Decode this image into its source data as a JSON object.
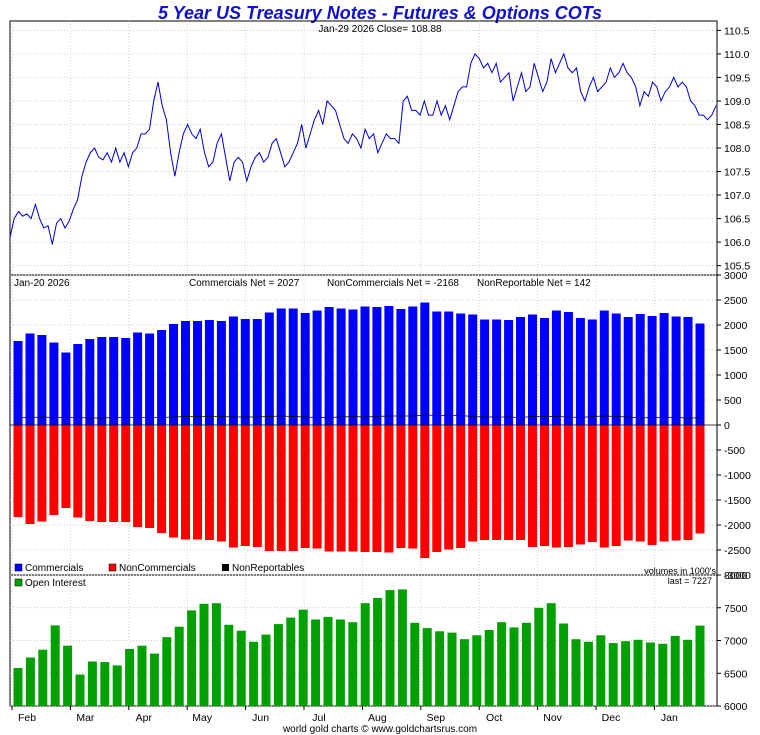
{
  "title": "5 Year US Treasury Notes - Futures & Options COTs",
  "footer": "world gold charts © www.goldchartsrus.com",
  "colors": {
    "title": "#1010d0",
    "price": "#0000cc",
    "commercials": "#0000ff",
    "noncommercials": "#ff0000",
    "nonreportables": "#000000",
    "open_interest": "#00a000"
  },
  "price_panel": {
    "header": "Jan-29  2026   Close= 108.88",
    "y_ticks": [
      "110.5",
      "110.0",
      "109.5",
      "109.0",
      "108.5",
      "108.0",
      "107.5",
      "107.0",
      "106.5",
      "106.0",
      "105.5"
    ]
  },
  "cot_panel": {
    "date_label": "Jan-20  2026",
    "net_labels": [
      "Commercials Net = 2027",
      "NonCommercials Net = -2168",
      "NonReportable Net = 142"
    ],
    "y_ticks": [
      "3000",
      "2500",
      "2000",
      "1500",
      "1000",
      "500",
      "0",
      "-500",
      "-1000",
      "-1500",
      "-2000",
      "-2500",
      "-3000"
    ],
    "legend": [
      "Commercials",
      "NonCommercials",
      "NonReportables"
    ],
    "volume_note": "volumes in 1000's"
  },
  "oi_panel": {
    "legend": "Open Interest",
    "last_label": "last = 7227",
    "y_ticks": [
      "8000",
      "7500",
      "7000",
      "6500",
      "6000"
    ]
  },
  "x_labels": [
    "Feb",
    "Mar",
    "Apr",
    "May",
    "Jun",
    "Jul",
    "Aug",
    "Sep",
    "Oct",
    "Nov",
    "Dec",
    "Jan"
  ],
  "chart_data": {
    "type": "line",
    "title": "5 Year US Treasury Notes - Futures & Options COTs",
    "xlabel": "",
    "ylabel": "",
    "price": {
      "ylim": [
        105.3,
        110.7
      ],
      "values": [
        106.1,
        106.5,
        106.65,
        106.55,
        106.6,
        106.5,
        106.8,
        106.5,
        106.3,
        106.35,
        105.95,
        106.4,
        106.5,
        106.3,
        106.45,
        106.7,
        106.9,
        107.4,
        107.7,
        107.9,
        108.0,
        107.8,
        107.75,
        107.9,
        107.7,
        108.0,
        107.7,
        107.9,
        107.6,
        107.9,
        108.0,
        108.3,
        108.3,
        108.4,
        109.0,
        109.4,
        108.9,
        108.6,
        107.9,
        107.4,
        107.9,
        108.3,
        108.5,
        108.3,
        108.2,
        108.4,
        107.9,
        107.6,
        107.7,
        108.1,
        108.3,
        107.8,
        107.3,
        107.7,
        107.8,
        107.7,
        107.3,
        107.6,
        107.8,
        107.9,
        107.7,
        107.8,
        108.1,
        108.2,
        107.9,
        107.6,
        107.7,
        107.9,
        108.1,
        108.5,
        108.0,
        108.3,
        108.6,
        108.8,
        108.5,
        109.0,
        108.9,
        108.8,
        108.5,
        108.2,
        108.1,
        108.3,
        108.2,
        108.0,
        108.4,
        108.2,
        108.3,
        107.9,
        108.1,
        108.3,
        108.2,
        108.2,
        108.1,
        109.0,
        109.1,
        108.8,
        108.8,
        108.7,
        109.0,
        108.7,
        108.7,
        109.0,
        108.7,
        108.9,
        108.6,
        108.9,
        109.2,
        109.3,
        109.3,
        109.8,
        110.0,
        109.9,
        109.7,
        109.8,
        109.6,
        109.8,
        109.4,
        109.5,
        109.6,
        109.0,
        109.3,
        109.6,
        109.2,
        109.3,
        109.8,
        109.5,
        109.2,
        109.4,
        109.9,
        109.6,
        109.8,
        110.0,
        109.7,
        109.6,
        109.7,
        109.2,
        109.0,
        109.3,
        109.5,
        109.2,
        109.3,
        109.4,
        109.7,
        109.5,
        109.6,
        109.8,
        109.6,
        109.5,
        109.3,
        108.9,
        109.2,
        109.1,
        109.4,
        109.3,
        109.0,
        109.2,
        109.3,
        109.5,
        109.3,
        109.4,
        109.3,
        109.0,
        108.9,
        108.7,
        108.7,
        108.6,
        108.7,
        108.9
      ]
    },
    "cot": {
      "ylim": [
        -3000,
        3000
      ],
      "commercials": [
        1680,
        1830,
        1800,
        1650,
        1450,
        1620,
        1720,
        1760,
        1760,
        1740,
        1850,
        1830,
        1900,
        2020,
        2080,
        2080,
        2100,
        2080,
        2170,
        2120,
        2120,
        2250,
        2330,
        2330,
        2240,
        2290,
        2360,
        2330,
        2310,
        2370,
        2360,
        2380,
        2320,
        2370,
        2450,
        2270,
        2270,
        2230,
        2210,
        2110,
        2110,
        2100,
        2160,
        2210,
        2140,
        2290,
        2260,
        2140,
        2110,
        2290,
        2230,
        2160,
        2220,
        2180,
        2240,
        2170,
        2160,
        2030
      ],
      "noncommercials": [
        -1840,
        -1980,
        -1930,
        -1800,
        -1660,
        -1850,
        -1920,
        -1940,
        -1940,
        -1940,
        -2040,
        -2060,
        -2160,
        -2250,
        -2290,
        -2290,
        -2300,
        -2330,
        -2450,
        -2420,
        -2440,
        -2520,
        -2520,
        -2520,
        -2460,
        -2470,
        -2530,
        -2530,
        -2530,
        -2540,
        -2540,
        -2550,
        -2460,
        -2470,
        -2660,
        -2540,
        -2490,
        -2460,
        -2330,
        -2300,
        -2300,
        -2300,
        -2300,
        -2440,
        -2420,
        -2450,
        -2440,
        -2390,
        -2340,
        -2450,
        -2420,
        -2310,
        -2330,
        -2400,
        -2330,
        -2310,
        -2300,
        -2168
      ],
      "nonreportables": [
        150,
        150,
        160,
        150,
        150,
        150,
        140,
        140,
        150,
        150,
        150,
        150,
        150,
        160,
        170,
        170,
        170,
        170,
        160,
        160,
        160,
        170,
        180,
        170,
        160,
        150,
        150,
        160,
        170,
        160,
        170,
        180,
        180,
        180,
        200,
        190,
        190,
        190,
        170,
        160,
        160,
        160,
        150,
        170,
        170,
        170,
        160,
        150,
        170,
        180,
        170,
        160,
        140,
        150,
        150,
        150,
        140,
        142
      ]
    },
    "open_interest": {
      "ylim": [
        6000,
        8000
      ],
      "values": [
        6580,
        6740,
        6860,
        7230,
        6920,
        6480,
        6680,
        6670,
        6620,
        6870,
        6920,
        6800,
        7050,
        7210,
        7460,
        7560,
        7570,
        7240,
        7150,
        6980,
        7090,
        7250,
        7350,
        7470,
        7320,
        7360,
        7320,
        7280,
        7570,
        7650,
        7770,
        7780,
        7270,
        7190,
        7140,
        7120,
        7020,
        7080,
        7160,
        7280,
        7200,
        7270,
        7500,
        7570,
        7260,
        7020,
        6980,
        7080,
        6960,
        6990,
        7010,
        6970,
        6950,
        7070,
        7010,
        7227
      ]
    }
  }
}
